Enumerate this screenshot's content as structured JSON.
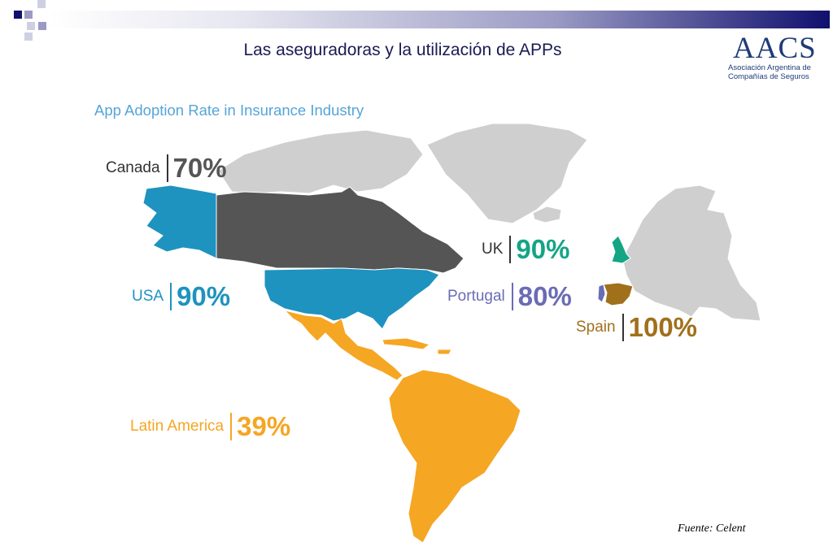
{
  "slide": {
    "title": "Las aseguradoras y la utilización de APPs",
    "source": "Fuente: Celent"
  },
  "logo": {
    "mark": "AACS",
    "line1": "Asociación Argentina de",
    "line2": "Compañías de Seguros"
  },
  "map": {
    "title": "App Adoption Rate in Insurance Industry",
    "colors": {
      "land": "#cfcfcf",
      "canada": "#555555",
      "usa": "#1e93bf",
      "latin_america": "#f5a623",
      "uk": "#14a585",
      "portugal": "#6a6cb5",
      "spain": "#a0701b"
    },
    "regions": [
      {
        "id": "canada",
        "name": "Canada",
        "value": "70%",
        "color": "#555555"
      },
      {
        "id": "usa",
        "name": "USA",
        "value": "90%",
        "color": "#1e93bf"
      },
      {
        "id": "uk",
        "name": "UK",
        "value": "90%",
        "color": "#14a585"
      },
      {
        "id": "portugal",
        "name": "Portugal",
        "value": "80%",
        "color": "#6a6cb5"
      },
      {
        "id": "spain",
        "name": "Spain",
        "value": "100%",
        "color": "#a0701b"
      },
      {
        "id": "latam",
        "name": "Latin America",
        "value": "39%",
        "color": "#f5a623"
      }
    ]
  }
}
